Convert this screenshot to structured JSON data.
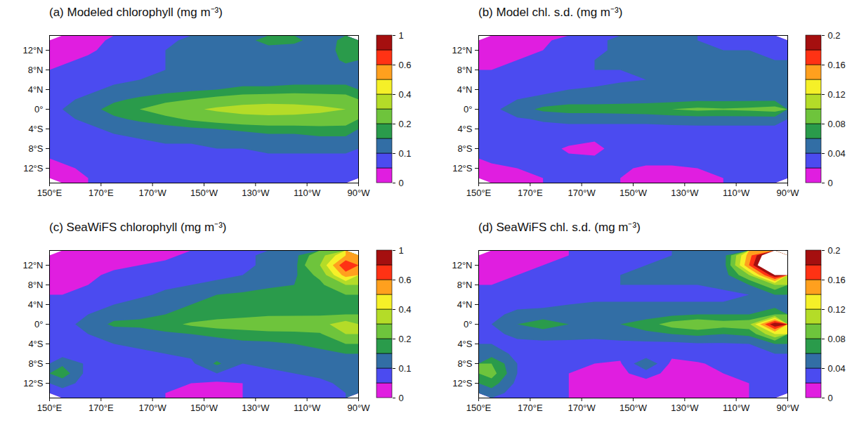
{
  "chart_data": [
    {
      "type": "heatmap",
      "title": "(a) Modeled chlorophyll (mg m⁻³)",
      "xlim": [
        150,
        270
      ],
      "xticks": [
        {
          "value": 150,
          "label": "150°E"
        },
        {
          "value": 170,
          "label": "170°E"
        },
        {
          "value": 190,
          "label": "170°W"
        },
        {
          "value": 210,
          "label": "150°W"
        },
        {
          "value": 230,
          "label": "130°W"
        },
        {
          "value": 250,
          "label": "110°W"
        },
        {
          "value": 270,
          "label": "90°W"
        }
      ],
      "ylim": [
        -15,
        15
      ],
      "yticks": [
        {
          "value": -12,
          "label": "12°S"
        },
        {
          "value": -8,
          "label": "8°S"
        },
        {
          "value": -4,
          "label": "4°S"
        },
        {
          "value": 0,
          "label": "0°"
        },
        {
          "value": 4,
          "label": "4°N"
        },
        {
          "value": 8,
          "label": "8°N"
        },
        {
          "value": 12,
          "label": "12°N"
        }
      ],
      "levels": [
        0,
        0.05,
        0.1,
        0.15,
        0.2,
        0.3,
        0.4,
        0.5,
        0.6,
        0.8,
        1
      ],
      "colorbar_ticks": [
        0,
        0.1,
        0.2,
        0.4,
        0.6,
        1
      ],
      "colors": [
        "#e01ee0",
        "#4b4bf0",
        "#326ea5",
        "#2a9b4b",
        "#6ec43c",
        "#b4dc28",
        "#f5f028",
        "#ffa01e",
        "#ff3214",
        "#a50f0f"
      ],
      "cells": [
        [
          0.03,
          0.03,
          0.06,
          0.08,
          0.09,
          0.11,
          0.12,
          0.14,
          0.16,
          0.16,
          0.13,
          0.16
        ],
        [
          0.03,
          0.04,
          0.07,
          0.08,
          0.1,
          0.11,
          0.12,
          0.13,
          0.14,
          0.13,
          0.12,
          0.17
        ],
        [
          0.04,
          0.06,
          0.08,
          0.09,
          0.1,
          0.11,
          0.12,
          0.12,
          0.12,
          0.12,
          0.12,
          0.16
        ],
        [
          0.06,
          0.07,
          0.08,
          0.09,
          0.1,
          0.11,
          0.11,
          0.11,
          0.11,
          0.12,
          0.12,
          0.13
        ],
        [
          0.07,
          0.08,
          0.09,
          0.1,
          0.11,
          0.12,
          0.12,
          0.13,
          0.13,
          0.13,
          0.13,
          0.13
        ],
        [
          0.08,
          0.09,
          0.11,
          0.12,
          0.13,
          0.14,
          0.15,
          0.16,
          0.16,
          0.17,
          0.17,
          0.17
        ],
        [
          0.09,
          0.11,
          0.14,
          0.16,
          0.18,
          0.2,
          0.22,
          0.24,
          0.25,
          0.25,
          0.24,
          0.23
        ],
        [
          0.1,
          0.13,
          0.17,
          0.2,
          0.24,
          0.28,
          0.32,
          0.35,
          0.36,
          0.35,
          0.33,
          0.3
        ],
        [
          0.09,
          0.11,
          0.14,
          0.16,
          0.18,
          0.21,
          0.23,
          0.25,
          0.26,
          0.26,
          0.25,
          0.24
        ],
        [
          0.08,
          0.09,
          0.11,
          0.12,
          0.13,
          0.14,
          0.15,
          0.16,
          0.17,
          0.17,
          0.18,
          0.18
        ],
        [
          0.07,
          0.08,
          0.09,
          0.1,
          0.11,
          0.11,
          0.12,
          0.12,
          0.13,
          0.13,
          0.14,
          0.14
        ],
        [
          0.07,
          0.08,
          0.08,
          0.09,
          0.09,
          0.09,
          0.1,
          0.1,
          0.11,
          0.11,
          0.11,
          0.11
        ],
        [
          0.06,
          0.07,
          0.07,
          0.08,
          0.08,
          0.08,
          0.08,
          0.09,
          0.09,
          0.09,
          0.09,
          0.09
        ],
        [
          0.04,
          0.06,
          0.07,
          0.07,
          0.07,
          0.07,
          0.08,
          0.08,
          0.08,
          0.08,
          0.08,
          0.08
        ],
        [
          0.03,
          0.05,
          0.06,
          0.07,
          0.07,
          0.07,
          0.07,
          0.07,
          0.07,
          0.07,
          0.07,
          0.07
        ]
      ]
    },
    {
      "type": "heatmap",
      "title": "(b) Model chl. s.d. (mg m⁻³)",
      "xlim": [
        150,
        270
      ],
      "xticks": [
        {
          "value": 150,
          "label": "150°E"
        },
        {
          "value": 170,
          "label": "170°E"
        },
        {
          "value": 190,
          "label": "170°W"
        },
        {
          "value": 210,
          "label": "150°W"
        },
        {
          "value": 230,
          "label": "130°W"
        },
        {
          "value": 250,
          "label": "110°W"
        },
        {
          "value": 270,
          "label": "90°W"
        }
      ],
      "ylim": [
        -15,
        15
      ],
      "yticks": [
        {
          "value": -12,
          "label": "12°S"
        },
        {
          "value": -8,
          "label": "8°S"
        },
        {
          "value": -4,
          "label": "4°S"
        },
        {
          "value": 0,
          "label": "0°"
        },
        {
          "value": 4,
          "label": "4°N"
        },
        {
          "value": 8,
          "label": "8°N"
        },
        {
          "value": 12,
          "label": "12°N"
        }
      ],
      "levels": [
        0,
        0.02,
        0.04,
        0.06,
        0.08,
        0.1,
        0.12,
        0.14,
        0.16,
        0.18,
        0.2
      ],
      "colorbar_ticks": [
        0,
        0.04,
        0.08,
        0.12,
        0.16,
        0.2
      ],
      "colors": [
        "#e01ee0",
        "#4b4bf0",
        "#326ea5",
        "#2a9b4b",
        "#6ec43c",
        "#b4dc28",
        "#f5f028",
        "#ffa01e",
        "#ff3214",
        "#a50f0f"
      ],
      "cells": [
        [
          0.01,
          0.01,
          0.015,
          0.03,
          0.035,
          0.045,
          0.045,
          0.045,
          0.04,
          0.035,
          0.035,
          0.03
        ],
        [
          0.01,
          0.015,
          0.02,
          0.03,
          0.035,
          0.045,
          0.045,
          0.05,
          0.045,
          0.04,
          0.04,
          0.035
        ],
        [
          0.015,
          0.02,
          0.025,
          0.035,
          0.04,
          0.045,
          0.045,
          0.045,
          0.045,
          0.04,
          0.045,
          0.04
        ],
        [
          0.02,
          0.025,
          0.03,
          0.035,
          0.04,
          0.04,
          0.042,
          0.042,
          0.042,
          0.045,
          0.05,
          0.045
        ],
        [
          0.025,
          0.03,
          0.03,
          0.035,
          0.035,
          0.038,
          0.04,
          0.04,
          0.042,
          0.042,
          0.045,
          0.04
        ],
        [
          0.03,
          0.035,
          0.035,
          0.04,
          0.042,
          0.045,
          0.045,
          0.045,
          0.045,
          0.045,
          0.045,
          0.045
        ],
        [
          0.03,
          0.04,
          0.045,
          0.05,
          0.05,
          0.05,
          0.05,
          0.052,
          0.055,
          0.055,
          0.055,
          0.055
        ],
        [
          0.035,
          0.05,
          0.065,
          0.07,
          0.07,
          0.072,
          0.075,
          0.08,
          0.085,
          0.082,
          0.085,
          0.09
        ],
        [
          0.03,
          0.038,
          0.042,
          0.045,
          0.045,
          0.045,
          0.045,
          0.048,
          0.05,
          0.05,
          0.05,
          0.05
        ],
        [
          0.03,
          0.032,
          0.035,
          0.035,
          0.035,
          0.035,
          0.035,
          0.035,
          0.035,
          0.035,
          0.035,
          0.035
        ],
        [
          0.035,
          0.03,
          0.03,
          0.025,
          0.022,
          0.03,
          0.032,
          0.032,
          0.032,
          0.032,
          0.032,
          0.032
        ],
        [
          0.035,
          0.03,
          0.025,
          0.018,
          0.015,
          0.028,
          0.03,
          0.03,
          0.03,
          0.03,
          0.03,
          0.03
        ],
        [
          0.025,
          0.025,
          0.025,
          0.022,
          0.022,
          0.025,
          0.025,
          0.025,
          0.025,
          0.025,
          0.025,
          0.025
        ],
        [
          0.015,
          0.02,
          0.022,
          0.022,
          0.022,
          0.022,
          0.018,
          0.018,
          0.02,
          0.022,
          0.022,
          0.022
        ],
        [
          0.01,
          0.015,
          0.02,
          0.02,
          0.02,
          0.02,
          0.015,
          0.015,
          0.018,
          0.02,
          0.02,
          0.02
        ]
      ]
    },
    {
      "type": "heatmap",
      "title": "(c) SeaWiFS chlorophyll (mg m⁻³)",
      "xlim": [
        150,
        270
      ],
      "xticks": [
        {
          "value": 150,
          "label": "150°E"
        },
        {
          "value": 170,
          "label": "170°E"
        },
        {
          "value": 190,
          "label": "170°W"
        },
        {
          "value": 210,
          "label": "150°W"
        },
        {
          "value": 230,
          "label": "130°W"
        },
        {
          "value": 250,
          "label": "110°W"
        },
        {
          "value": 270,
          "label": "90°W"
        }
      ],
      "ylim": [
        -15,
        15
      ],
      "yticks": [
        {
          "value": -12,
          "label": "12°S"
        },
        {
          "value": -8,
          "label": "8°S"
        },
        {
          "value": -4,
          "label": "4°S"
        },
        {
          "value": 0,
          "label": "0°"
        },
        {
          "value": 4,
          "label": "4°N"
        },
        {
          "value": 8,
          "label": "8°N"
        },
        {
          "value": 12,
          "label": "12°N"
        }
      ],
      "levels": [
        0,
        0.05,
        0.1,
        0.15,
        0.2,
        0.3,
        0.4,
        0.5,
        0.6,
        0.8,
        1
      ],
      "colorbar_ticks": [
        0,
        0.1,
        0.2,
        0.4,
        0.6,
        1
      ],
      "colors": [
        "#e01ee0",
        "#4b4bf0",
        "#326ea5",
        "#2a9b4b",
        "#6ec43c",
        "#b4dc28",
        "#f5f028",
        "#ffa01e",
        "#ff3214",
        "#a50f0f"
      ],
      "cells": [
        [
          0.03,
          0.03,
          0.03,
          0.04,
          0.04,
          0.06,
          0.08,
          0.09,
          0.11,
          0.13,
          0.25,
          0.5
        ],
        [
          0.03,
          0.04,
          0.04,
          0.05,
          0.06,
          0.07,
          0.08,
          0.09,
          0.11,
          0.13,
          0.3,
          0.7
        ],
        [
          0.04,
          0.04,
          0.06,
          0.07,
          0.08,
          0.09,
          0.09,
          0.1,
          0.12,
          0.14,
          0.22,
          0.55
        ],
        [
          0.04,
          0.05,
          0.07,
          0.08,
          0.09,
          0.1,
          0.11,
          0.12,
          0.14,
          0.15,
          0.18,
          0.3
        ],
        [
          0.05,
          0.06,
          0.08,
          0.09,
          0.11,
          0.13,
          0.15,
          0.16,
          0.17,
          0.17,
          0.18,
          0.2
        ],
        [
          0.06,
          0.08,
          0.1,
          0.12,
          0.13,
          0.15,
          0.16,
          0.17,
          0.18,
          0.18,
          0.18,
          0.18
        ],
        [
          0.07,
          0.1,
          0.13,
          0.14,
          0.15,
          0.16,
          0.17,
          0.18,
          0.19,
          0.19,
          0.19,
          0.2
        ],
        [
          0.08,
          0.12,
          0.16,
          0.16,
          0.18,
          0.21,
          0.23,
          0.24,
          0.25,
          0.26,
          0.27,
          0.35
        ],
        [
          0.08,
          0.1,
          0.12,
          0.13,
          0.14,
          0.15,
          0.16,
          0.17,
          0.18,
          0.18,
          0.19,
          0.3
        ],
        [
          0.08,
          0.08,
          0.1,
          0.11,
          0.12,
          0.12,
          0.13,
          0.14,
          0.14,
          0.15,
          0.16,
          0.2
        ],
        [
          0.08,
          0.07,
          0.08,
          0.09,
          0.1,
          0.11,
          0.12,
          0.12,
          0.13,
          0.14,
          0.14,
          0.15
        ],
        [
          0.14,
          0.09,
          0.08,
          0.08,
          0.08,
          0.09,
          0.16,
          0.1,
          0.11,
          0.12,
          0.13,
          0.14
        ],
        [
          0.18,
          0.08,
          0.07,
          0.07,
          0.07,
          0.08,
          0.1,
          0.09,
          0.09,
          0.1,
          0.11,
          0.12
        ],
        [
          0.12,
          0.08,
          0.07,
          0.06,
          0.06,
          0.05,
          0.04,
          0.05,
          0.07,
          0.08,
          0.09,
          0.11
        ],
        [
          0.08,
          0.07,
          0.07,
          0.06,
          0.05,
          0.04,
          0.04,
          0.05,
          0.06,
          0.07,
          0.08,
          0.1
        ]
      ]
    },
    {
      "type": "heatmap",
      "title": "(d) SeaWiFS chl. s.d. (mg m⁻³)",
      "xlim": [
        150,
        270
      ],
      "xticks": [
        {
          "value": 150,
          "label": "150°E"
        },
        {
          "value": 170,
          "label": "170°E"
        },
        {
          "value": 190,
          "label": "170°W"
        },
        {
          "value": 210,
          "label": "150°W"
        },
        {
          "value": 230,
          "label": "130°W"
        },
        {
          "value": 250,
          "label": "110°W"
        },
        {
          "value": 270,
          "label": "90°W"
        }
      ],
      "ylim": [
        -15,
        15
      ],
      "yticks": [
        {
          "value": -12,
          "label": "12°S"
        },
        {
          "value": -8,
          "label": "8°S"
        },
        {
          "value": -4,
          "label": "4°S"
        },
        {
          "value": 0,
          "label": "0°"
        },
        {
          "value": 4,
          "label": "4°N"
        },
        {
          "value": 8,
          "label": "8°N"
        },
        {
          "value": 12,
          "label": "12°N"
        }
      ],
      "levels": [
        0,
        0.02,
        0.04,
        0.06,
        0.08,
        0.1,
        0.12,
        0.14,
        0.16,
        0.18,
        0.2
      ],
      "colorbar_ticks": [
        0,
        0.04,
        0.08,
        0.12,
        0.16,
        0.2
      ],
      "colors": [
        "#e01ee0",
        "#4b4bf0",
        "#326ea5",
        "#2a9b4b",
        "#6ec43c",
        "#b4dc28",
        "#f5f028",
        "#ffa01e",
        "#ff3214",
        "#a50f0f"
      ],
      "cells": [
        [
          0.01,
          0.01,
          0.015,
          0.02,
          0.025,
          0.03,
          0.035,
          0.04,
          0.04,
          0.05,
          0.15,
          0.25
        ],
        [
          0.01,
          0.015,
          0.02,
          0.025,
          0.03,
          0.035,
          0.04,
          0.045,
          0.045,
          0.05,
          0.16,
          0.28
        ],
        [
          0.015,
          0.02,
          0.025,
          0.03,
          0.035,
          0.04,
          0.042,
          0.045,
          0.042,
          0.05,
          0.1,
          0.2
        ],
        [
          0.02,
          0.025,
          0.03,
          0.035,
          0.035,
          0.04,
          0.04,
          0.04,
          0.04,
          0.045,
          0.06,
          0.1
        ],
        [
          0.025,
          0.03,
          0.03,
          0.035,
          0.035,
          0.035,
          0.035,
          0.035,
          0.035,
          0.035,
          0.04,
          0.06
        ],
        [
          0.03,
          0.035,
          0.035,
          0.04,
          0.042,
          0.042,
          0.042,
          0.042,
          0.042,
          0.042,
          0.042,
          0.05
        ],
        [
          0.035,
          0.045,
          0.05,
          0.05,
          0.048,
          0.05,
          0.05,
          0.055,
          0.06,
          0.06,
          0.06,
          0.08
        ],
        [
          0.04,
          0.06,
          0.07,
          0.06,
          0.055,
          0.06,
          0.07,
          0.09,
          0.1,
          0.09,
          0.095,
          0.2
        ],
        [
          0.035,
          0.045,
          0.05,
          0.048,
          0.045,
          0.05,
          0.055,
          0.06,
          0.065,
          0.06,
          0.065,
          0.12
        ],
        [
          0.04,
          0.035,
          0.035,
          0.035,
          0.035,
          0.035,
          0.035,
          0.035,
          0.038,
          0.038,
          0.04,
          0.06
        ],
        [
          0.05,
          0.035,
          0.03,
          0.03,
          0.025,
          0.025,
          0.025,
          0.025,
          0.03,
          0.03,
          0.035,
          0.04
        ],
        [
          0.08,
          0.04,
          0.025,
          0.02,
          0.02,
          0.018,
          0.06,
          0.015,
          0.018,
          0.025,
          0.03,
          0.035
        ],
        [
          0.09,
          0.04,
          0.025,
          0.02,
          0.015,
          0.015,
          0.03,
          0.012,
          0.015,
          0.02,
          0.025,
          0.03
        ],
        [
          0.07,
          0.035,
          0.025,
          0.02,
          0.015,
          0.012,
          0.012,
          0.012,
          0.012,
          0.015,
          0.02,
          0.025
        ],
        [
          0.05,
          0.03,
          0.025,
          0.02,
          0.015,
          0.015,
          0.012,
          0.012,
          0.012,
          0.015,
          0.02,
          0.025
        ]
      ]
    }
  ]
}
